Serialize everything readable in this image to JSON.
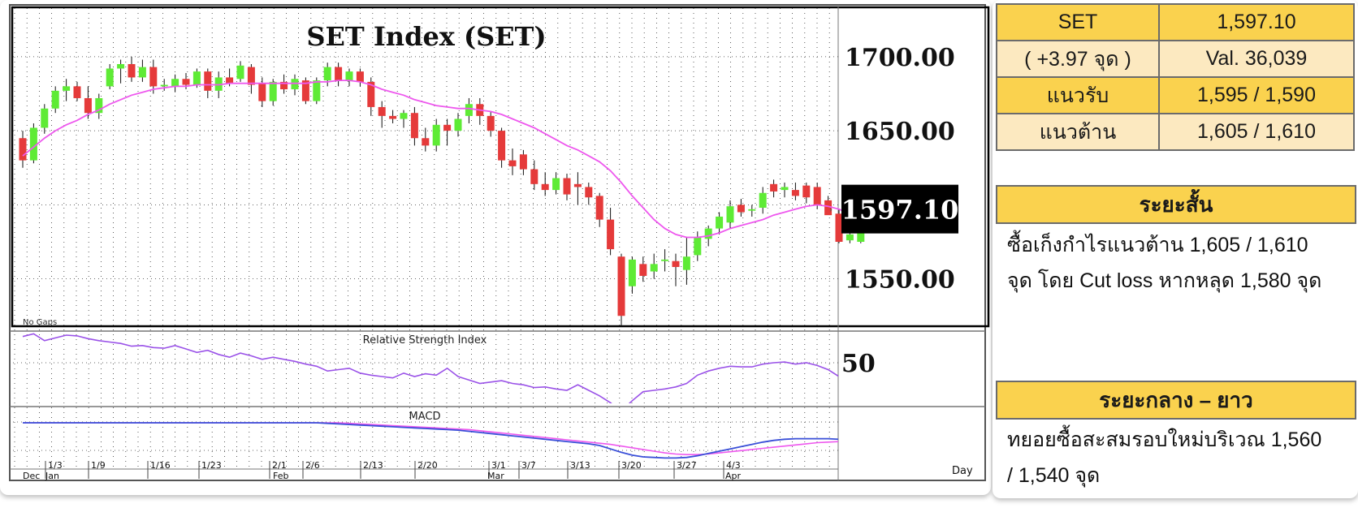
{
  "chart_data": {
    "type": "candlestick",
    "title": "SET Index (SET)",
    "ylim": [
      1518,
      1735
    ],
    "y_ticks": [
      "1700.00",
      "1650.00",
      "1550.00"
    ],
    "last_price_label": "1597.10",
    "last_price": 1597.1,
    "no_gaps_label": "No Gaps",
    "x_axis_label": "Day",
    "date_labels": [
      "1/3",
      "1/9",
      "1/16",
      "1/23",
      "2/1",
      "2/6",
      "2/13",
      "2/20",
      "3/1",
      "3/7",
      "3/13",
      "3/20",
      "3/27",
      "4/3"
    ],
    "month_labels": [
      "Dec",
      "Jan",
      "Feb",
      "Mar",
      "Apr"
    ],
    "ohlc": [
      [
        1645,
        1650,
        1625,
        1630
      ],
      [
        1630,
        1655,
        1628,
        1652
      ],
      [
        1652,
        1668,
        1648,
        1665
      ],
      [
        1665,
        1680,
        1662,
        1677
      ],
      [
        1677,
        1685,
        1670,
        1680
      ],
      [
        1680,
        1683,
        1670,
        1672
      ],
      [
        1672,
        1680,
        1658,
        1662
      ],
      [
        1662,
        1675,
        1658,
        1672
      ],
      [
        1680,
        1695,
        1678,
        1692
      ],
      [
        1692,
        1698,
        1682,
        1695
      ],
      [
        1695,
        1700,
        1683,
        1686
      ],
      [
        1686,
        1698,
        1683,
        1693
      ],
      [
        1693,
        1698,
        1675,
        1680
      ],
      [
        1680,
        1685,
        1677,
        1681
      ],
      [
        1680,
        1688,
        1676,
        1685
      ],
      [
        1685,
        1689,
        1678,
        1681
      ],
      [
        1681,
        1692,
        1679,
        1690
      ],
      [
        1690,
        1692,
        1672,
        1677
      ],
      [
        1677,
        1690,
        1672,
        1686
      ],
      [
        1686,
        1692,
        1680,
        1682
      ],
      [
        1685,
        1697,
        1683,
        1694
      ],
      [
        1693,
        1695,
        1675,
        1681
      ],
      [
        1682,
        1686,
        1666,
        1670
      ],
      [
        1670,
        1685,
        1667,
        1683
      ],
      [
        1683,
        1688,
        1675,
        1678
      ],
      [
        1678,
        1688,
        1674,
        1685
      ],
      [
        1684,
        1686,
        1668,
        1670
      ],
      [
        1670,
        1686,
        1668,
        1684
      ],
      [
        1684,
        1696,
        1680,
        1693
      ],
      [
        1693,
        1696,
        1680,
        1684
      ],
      [
        1684,
        1692,
        1680,
        1690
      ],
      [
        1690,
        1692,
        1680,
        1683
      ],
      [
        1683,
        1686,
        1660,
        1666
      ],
      [
        1666,
        1670,
        1652,
        1660
      ],
      [
        1660,
        1664,
        1655,
        1658
      ],
      [
        1658,
        1664,
        1652,
        1662
      ],
      [
        1662,
        1666,
        1640,
        1645
      ],
      [
        1645,
        1652,
        1636,
        1640
      ],
      [
        1640,
        1658,
        1636,
        1654
      ],
      [
        1654,
        1658,
        1640,
        1650
      ],
      [
        1650,
        1662,
        1646,
        1658
      ],
      [
        1660,
        1672,
        1655,
        1668
      ],
      [
        1668,
        1672,
        1654,
        1660
      ],
      [
        1660,
        1663,
        1646,
        1650
      ],
      [
        1650,
        1652,
        1625,
        1630
      ],
      [
        1630,
        1638,
        1620,
        1626
      ],
      [
        1634,
        1637,
        1620,
        1624
      ],
      [
        1624,
        1630,
        1610,
        1614
      ],
      [
        1614,
        1622,
        1606,
        1610
      ],
      [
        1610,
        1622,
        1607,
        1618
      ],
      [
        1618,
        1621,
        1603,
        1607
      ],
      [
        1614,
        1622,
        1600,
        1612
      ],
      [
        1612,
        1615,
        1600,
        1605
      ],
      [
        1606,
        1608,
        1585,
        1590
      ],
      [
        1590,
        1598,
        1566,
        1570
      ],
      [
        1565,
        1567,
        1518,
        1525
      ],
      [
        1545,
        1565,
        1540,
        1563
      ],
      [
        1560,
        1565,
        1548,
        1552
      ],
      [
        1555,
        1567,
        1550,
        1560
      ],
      [
        1562,
        1570,
        1555,
        1563
      ],
      [
        1562,
        1567,
        1545,
        1558
      ],
      [
        1556,
        1578,
        1546,
        1565
      ],
      [
        1566,
        1582,
        1562,
        1578
      ],
      [
        1577,
        1586,
        1572,
        1584
      ],
      [
        1584,
        1595,
        1580,
        1592
      ],
      [
        1588,
        1603,
        1584,
        1599
      ],
      [
        1600,
        1604,
        1592,
        1595
      ],
      [
        1596,
        1600,
        1592,
        1597
      ],
      [
        1598,
        1612,
        1594,
        1608
      ],
      [
        1614,
        1617,
        1605,
        1609
      ],
      [
        1610,
        1615,
        1605,
        1612
      ],
      [
        1610,
        1615,
        1603,
        1606
      ],
      [
        1613,
        1615,
        1601,
        1605
      ],
      [
        1612,
        1615,
        1597,
        1600
      ],
      [
        1603,
        1606,
        1595,
        1593
      ],
      [
        1594,
        1597,
        1574,
        1575
      ],
      [
        1576,
        1584,
        1574,
        1580
      ],
      [
        1575,
        1595,
        1574,
        1593
      ],
      [
        1594,
        1598,
        1590,
        1597.1
      ]
    ],
    "sma": [
      1633,
      1639,
      1645,
      1650,
      1654,
      1657,
      1661,
      1664,
      1668,
      1671,
      1674,
      1676,
      1678,
      1679,
      1680,
      1680,
      1681,
      1681,
      1681,
      1682,
      1682,
      1682,
      1682,
      1682,
      1682,
      1682,
      1682,
      1683,
      1683,
      1684,
      1684,
      1683,
      1681,
      1678,
      1676,
      1674,
      1671,
      1669,
      1667,
      1666,
      1665,
      1665,
      1664,
      1663,
      1661,
      1658,
      1655,
      1652,
      1648,
      1644,
      1640,
      1637,
      1633,
      1629,
      1623,
      1615,
      1606,
      1598,
      1590,
      1584,
      1580,
      1578,
      1578,
      1579,
      1581,
      1584,
      1586,
      1588,
      1590,
      1593,
      1595,
      1597,
      1599,
      1600,
      1599,
      1597,
      1594,
      1592,
      1592
    ],
    "rsi_title": "Relative Strength Index",
    "rsi_level_label": "50",
    "rsi": [
      88,
      92,
      82,
      86,
      90,
      89,
      85,
      82,
      80,
      78,
      74,
      75,
      72,
      71,
      75,
      70,
      65,
      68,
      62,
      58,
      64,
      60,
      55,
      58,
      55,
      52,
      48,
      45,
      38,
      40,
      42,
      35,
      32,
      30,
      28,
      35,
      30,
      34,
      32,
      42,
      30,
      25,
      20,
      22,
      24,
      20,
      18,
      14,
      15,
      12,
      10,
      18,
      10,
      2,
      -8,
      -20,
      -5,
      8,
      10,
      12,
      15,
      20,
      32,
      38,
      42,
      45,
      44,
      44,
      48,
      50,
      51,
      48,
      50,
      46,
      40,
      30,
      35,
      42,
      43
    ],
    "macd_title": "MACD",
    "macd": [
      20,
      20,
      20,
      20,
      20,
      20,
      20,
      20,
      20,
      20,
      20,
      20,
      20,
      20,
      20,
      20,
      20,
      20,
      20,
      20,
      20,
      20,
      20,
      20,
      20,
      20,
      20,
      20,
      19,
      18,
      17,
      16,
      15,
      14,
      13,
      12,
      11,
      10,
      9,
      8,
      7,
      5,
      3,
      1,
      -1,
      -3,
      -5,
      -7,
      -9,
      -11,
      -13,
      -15,
      -17,
      -20,
      -26,
      -32,
      -37,
      -40,
      -41,
      -42,
      -42,
      -41,
      -38,
      -34,
      -30,
      -26,
      -22,
      -18,
      -14,
      -11,
      -9,
      -8,
      -8,
      -8,
      -8,
      -9,
      -10,
      -11,
      -12
    ],
    "signal": [
      20,
      20,
      20,
      20,
      20,
      20,
      20,
      20,
      20,
      20,
      20,
      20,
      20,
      20,
      20,
      20,
      20,
      20,
      20,
      20,
      20,
      20,
      20,
      20,
      20,
      20,
      20,
      20,
      20,
      20,
      19,
      18,
      17,
      16,
      15,
      14,
      13,
      12,
      11,
      10,
      9,
      8,
      6,
      4,
      2,
      0,
      -2,
      -4,
      -6,
      -8,
      -10,
      -12,
      -14,
      -16,
      -18,
      -21,
      -24,
      -27,
      -30,
      -33,
      -35,
      -36,
      -36,
      -35,
      -33,
      -31,
      -29,
      -27,
      -25,
      -23,
      -21,
      -19,
      -17,
      -15,
      -14,
      -13,
      -13,
      -12,
      -12
    ],
    "up_color": "#5eeb35",
    "down_color": "#e53a3a",
    "sma_color": "#ee58ee",
    "rsi_color": "#9a52e8",
    "macd_color": "#3a4fd8",
    "signal_color": "#ee58ee"
  },
  "summary": {
    "rows": [
      [
        "SET",
        "1,597.10"
      ],
      [
        "( +3.97 จุด )",
        "Val. 36,039"
      ],
      [
        "แนวรับ",
        "1,595 / 1,590"
      ],
      [
        "แนวต้าน",
        "1,605 / 1,610"
      ]
    ]
  },
  "short_term": {
    "title": "ระยะสั้น",
    "line1": "ซื้อเก็งกำไรแนวต้าน 1,605 / 1,610",
    "line2": "จุด โดย Cut loss หากหลุด 1,580 จุด"
  },
  "long_term": {
    "title": "ระยะกลาง – ยาว",
    "line1": "ทยอยซื้อสะสมรอบใหม่บริเวณ 1,560",
    "line2": "/  1,540 จุด"
  }
}
